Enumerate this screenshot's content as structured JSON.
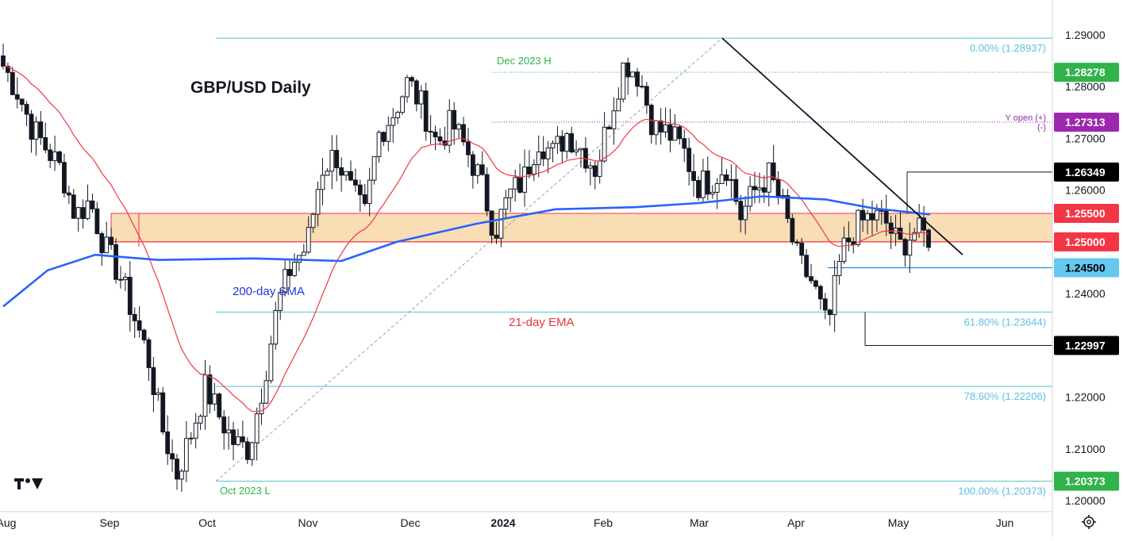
{
  "chart_data": {
    "type": "candlestick",
    "title": "GBP/USD Daily",
    "ylim": [
      1.195,
      1.297
    ],
    "x_axis_labels": [
      "Aug",
      "Sep",
      "Oct",
      "Nov",
      "Dec",
      "2024",
      "Feb",
      "Mar",
      "Apr",
      "May",
      "Jun"
    ],
    "y_ticks": [
      "1.29000",
      "1.28000",
      "1.27000",
      "1.26000",
      "1.24000",
      "1.22000",
      "1.21000",
      "1.20000"
    ],
    "price_badges": [
      {
        "value": 1.28278,
        "label": "1.28278",
        "color": "#2fb34a",
        "text_color": "#ffffff"
      },
      {
        "value": 1.27313,
        "label": "1.27313",
        "color": "#9c27b0",
        "text_color": "#ffffff"
      },
      {
        "value": 1.26349,
        "label": "1.26349",
        "color": "#000000",
        "text_color": "#ffffff"
      },
      {
        "value": 1.2555,
        "label": "1.25500",
        "color": "#f23645",
        "text_color": "#ffffff"
      },
      {
        "value": 1.25,
        "label": "1.25000",
        "color": "#f23645",
        "text_color": "#ffffff"
      },
      {
        "value": 1.245,
        "label": "1.24500",
        "color": "#64c8f0",
        "text_color": "#000000"
      },
      {
        "value": 1.22997,
        "label": "1.22997",
        "color": "#000000",
        "text_color": "#ffffff"
      },
      {
        "value": 1.20373,
        "label": "1.20373",
        "color": "#2fb34a",
        "text_color": "#ffffff"
      }
    ],
    "fibonacci": [
      {
        "level": "0.00%",
        "value": 1.28937,
        "label": "0.00% (1.28937)"
      },
      {
        "level": "61.80%",
        "value": 1.23644,
        "label": "61.80% (1.23644)"
      },
      {
        "level": "78.60%",
        "value": 1.22206,
        "label": "78.60% (1.22206)"
      },
      {
        "level": "100.00%",
        "value": 1.20373,
        "label": "100.00% (1.20373)"
      }
    ],
    "resistance_zone": {
      "low": 1.25,
      "high": 1.2555,
      "color": "#f7d7a8"
    },
    "annotations": {
      "dec_high": "Dec 2023 H",
      "oct_low": "Oct 2023 L",
      "sma_label": "200-day SMA",
      "ema_label": "21-day EMA",
      "yopen_label": "Y open (+)",
      "yopen_sub": "(-)"
    },
    "series": [
      {
        "name": "200-day SMA",
        "color": "#2962ff"
      },
      {
        "name": "21-day EMA",
        "color": "#f23645"
      }
    ],
    "ohlc_anchor_closes": [
      1.284,
      1.279,
      1.272,
      1.268,
      1.264,
      1.255,
      1.258,
      1.249,
      1.244,
      1.236,
      1.228,
      1.214,
      1.205,
      1.213,
      1.222,
      1.216,
      1.211,
      1.21,
      1.223,
      1.238,
      1.246,
      1.249,
      1.264,
      1.267,
      1.26,
      1.255,
      1.271,
      1.275,
      1.281,
      1.276,
      1.269,
      1.273,
      1.268,
      1.262,
      1.252,
      1.259,
      1.262,
      1.27,
      1.267,
      1.271,
      1.268,
      1.264,
      1.275,
      1.285,
      1.282,
      1.272,
      1.271,
      1.268,
      1.261,
      1.262,
      1.265,
      1.255,
      1.26,
      1.263,
      1.256,
      1.246,
      1.242,
      1.233,
      1.248,
      1.253,
      1.255,
      1.254,
      1.249,
      1.252,
      1.251
    ]
  },
  "logo": {
    "text": "TV"
  },
  "settings_icon": "gear-icon"
}
